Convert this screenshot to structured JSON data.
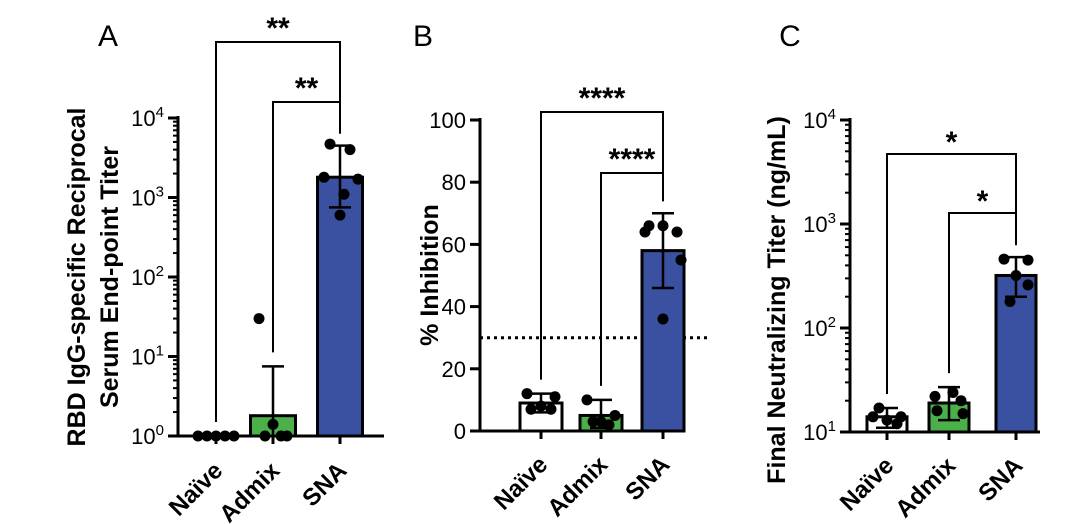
{
  "figure": {
    "colors": {
      "naive": "#ffffff",
      "admix": "#4bb04a",
      "sna": "#3a50a0"
    }
  },
  "chart_data": [
    {
      "type": "bar",
      "panel_label": "A",
      "ylabel_lines": [
        "RBD IgG-specific Reciprocal",
        "Serum End-point Titer"
      ],
      "yscale": "log",
      "ylim": [
        1,
        10000
      ],
      "yticks": [
        {
          "base": "10",
          "exp": "0",
          "value": 1
        },
        {
          "base": "10",
          "exp": "1",
          "value": 10
        },
        {
          "base": "10",
          "exp": "2",
          "value": 100
        },
        {
          "base": "10",
          "exp": "3",
          "value": 1000
        },
        {
          "base": "10",
          "exp": "4",
          "value": 10000
        }
      ],
      "categories": [
        "Naïve",
        "Admix",
        "SNA"
      ],
      "bar_colors": [
        "#ffffff",
        "#4bb04a",
        "#3a50a0"
      ],
      "values": [
        1,
        1.8,
        1800
      ],
      "error_upper": [
        1,
        7.5,
        4500
      ],
      "error_lower": [
        1,
        1,
        750
      ],
      "points": [
        [
          1,
          1,
          1,
          1,
          1
        ],
        [
          30,
          1.4,
          1,
          1,
          1
        ],
        [
          4700,
          4000,
          1700,
          1800,
          1100,
          600
        ]
      ],
      "significance": [
        {
          "from": "Naïve",
          "to": "SNA",
          "label": "**"
        },
        {
          "from": "Admix",
          "to": "SNA",
          "label": "**"
        }
      ]
    },
    {
      "type": "bar",
      "panel_label": "B",
      "ylabel_lines": [
        "% Inhibition"
      ],
      "yscale": "linear",
      "ylim": [
        0,
        100
      ],
      "yticks": [
        {
          "label": "0",
          "value": 0
        },
        {
          "label": "20",
          "value": 20
        },
        {
          "label": "40",
          "value": 40
        },
        {
          "label": "60",
          "value": 60
        },
        {
          "label": "80",
          "value": 80
        },
        {
          "label": "100",
          "value": 100
        }
      ],
      "categories": [
        "Naïve",
        "Admix",
        "SNA"
      ],
      "bar_colors": [
        "#ffffff",
        "#4bb04a",
        "#3a50a0"
      ],
      "values": [
        9,
        5,
        58
      ],
      "error_upper": [
        12,
        10,
        70
      ],
      "error_lower": [
        6,
        1,
        46
      ],
      "points": [
        [
          12,
          11,
          8,
          7,
          7
        ],
        [
          10,
          5,
          3,
          3,
          2
        ],
        [
          66,
          66,
          64,
          64,
          55,
          36
        ]
      ],
      "reference_line": 30,
      "significance": [
        {
          "from": "Naïve",
          "to": "SNA",
          "label": "****"
        },
        {
          "from": "Admix",
          "to": "SNA",
          "label": "****"
        }
      ]
    },
    {
      "type": "bar",
      "panel_label": "C",
      "ylabel_lines": [
        "Final Neutralizing Titer (ng/mL)"
      ],
      "yscale": "log",
      "ylim": [
        10,
        10000
      ],
      "yticks": [
        {
          "base": "10",
          "exp": "1",
          "value": 10
        },
        {
          "base": "10",
          "exp": "2",
          "value": 100
        },
        {
          "base": "10",
          "exp": "3",
          "value": 1000
        },
        {
          "base": "10",
          "exp": "4",
          "value": 10000
        }
      ],
      "categories": [
        "Naïve",
        "Admix",
        "SNA"
      ],
      "bar_colors": [
        "#ffffff",
        "#4bb04a",
        "#3a50a0"
      ],
      "values": [
        14,
        19,
        320
      ],
      "error_upper": [
        17,
        27,
        480
      ],
      "error_lower": [
        11,
        13,
        200
      ],
      "points": [
        [
          17,
          14,
          14,
          13,
          12
        ],
        [
          24,
          22,
          20,
          16,
          15
        ],
        [
          460,
          450,
          320,
          260,
          180
        ]
      ],
      "significance": [
        {
          "from": "Naïve",
          "to": "SNA",
          "label": "*"
        },
        {
          "from": "Admix",
          "to": "SNA",
          "label": "*"
        }
      ]
    }
  ]
}
